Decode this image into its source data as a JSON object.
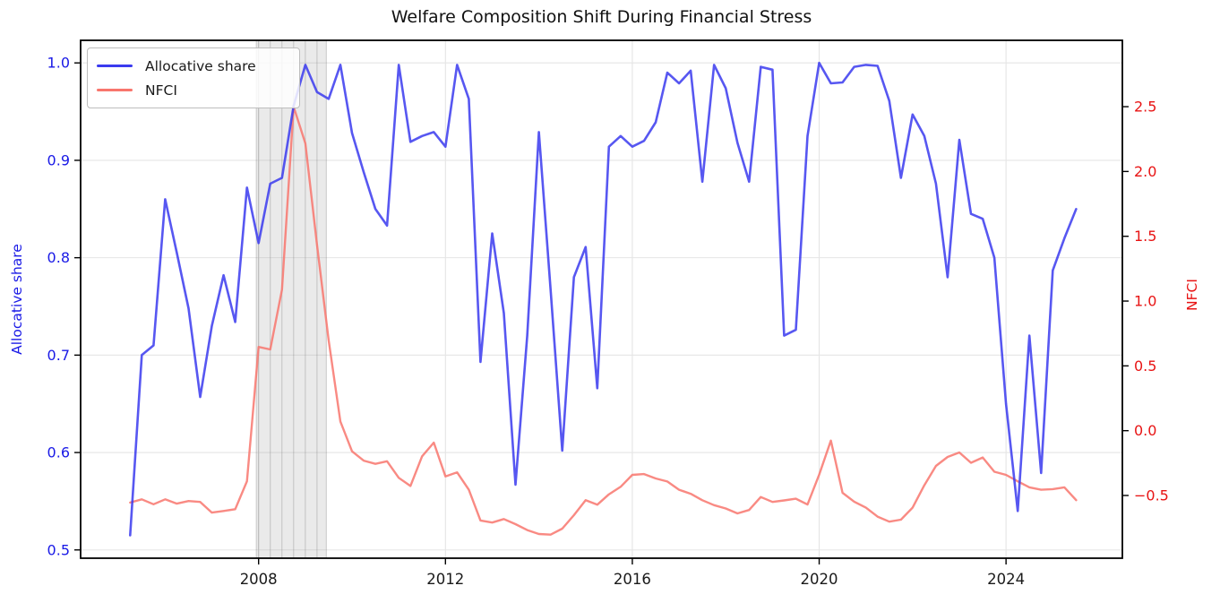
{
  "title": "Welfare Composition Shift During Financial Stress",
  "legend": [
    {
      "label": "Allocative share",
      "color": "#3a3aef"
    },
    {
      "label": "NFCI",
      "color": "#f8766d"
    }
  ],
  "axes": {
    "left": {
      "label": "Allocative share",
      "color": "#1a1ae6",
      "tick_values": [
        0.5,
        0.6,
        0.7,
        0.8,
        0.9,
        1.0
      ],
      "tick_labels": [
        "0.5",
        "0.6",
        "0.7",
        "0.8",
        "0.9",
        "1.0"
      ]
    },
    "right": {
      "label": "NFCI",
      "color": "#e81414",
      "tick_values": [
        -0.5,
        0.0,
        0.5,
        1.0,
        1.5,
        2.0,
        2.5
      ],
      "tick_labels": [
        "−0.5",
        "0.0",
        "0.5",
        "1.0",
        "1.5",
        "2.0",
        "2.5"
      ]
    },
    "x": {
      "tick_values": [
        2008,
        2012,
        2016,
        2020,
        2024
      ],
      "tick_labels": [
        "2008",
        "2012",
        "2016",
        "2020",
        "2024"
      ]
    }
  },
  "chart_data": {
    "type": "line",
    "title": "Welfare Composition Shift During Financial Stress",
    "x_start": 2005.25,
    "x_step": 0.25,
    "x_range": [
      2004.19,
      2026.49
    ],
    "left_range": [
      0.4915,
      1.0232
    ],
    "right_range": [
      -0.984,
      3.012
    ],
    "grid": true,
    "legend_position": "upper left",
    "shaded_region": {
      "from": 2007.95,
      "to": 2009.45,
      "fill": "rgba(160,160,160,0.22)",
      "edge": "rgba(120,120,120,0.35)",
      "quarterly_edges": true
    },
    "series": [
      {
        "name": "NFCI",
        "axis": "right",
        "color": "#f8766d",
        "width": 2.4,
        "opacity": 0.85,
        "values": [
          -0.555,
          -0.53,
          -0.568,
          -0.53,
          -0.563,
          -0.543,
          -0.55,
          -0.632,
          -0.62,
          -0.606,
          -0.39,
          0.646,
          0.627,
          1.088,
          2.5,
          2.217,
          1.434,
          0.698,
          0.071,
          -0.159,
          -0.231,
          -0.256,
          -0.236,
          -0.364,
          -0.427,
          -0.198,
          -0.092,
          -0.353,
          -0.322,
          -0.456,
          -0.693,
          -0.709,
          -0.682,
          -0.721,
          -0.767,
          -0.797,
          -0.802,
          -0.756,
          -0.652,
          -0.536,
          -0.571,
          -0.491,
          -0.433,
          -0.341,
          -0.335,
          -0.369,
          -0.392,
          -0.456,
          -0.487,
          -0.537,
          -0.575,
          -0.6,
          -0.638,
          -0.612,
          -0.512,
          -0.55,
          -0.538,
          -0.525,
          -0.57,
          -0.34,
          -0.076,
          -0.479,
          -0.548,
          -0.594,
          -0.663,
          -0.702,
          -0.687,
          -0.594,
          -0.421,
          -0.272,
          -0.203,
          -0.168,
          -0.248,
          -0.207,
          -0.317,
          -0.341,
          -0.391,
          -0.437,
          -0.456,
          -0.451,
          -0.437,
          -0.536
        ]
      },
      {
        "name": "Allocative share",
        "axis": "left",
        "color": "#3a3aef",
        "width": 2.6,
        "opacity": 0.85,
        "values": [
          0.515,
          0.7,
          0.71,
          0.86,
          0.805,
          0.748,
          0.657,
          0.73,
          0.782,
          0.734,
          0.872,
          0.815,
          0.876,
          0.882,
          0.956,
          0.998,
          0.97,
          0.963,
          0.998,
          0.928,
          0.888,
          0.85,
          0.833,
          0.998,
          0.919,
          0.925,
          0.929,
          0.914,
          0.998,
          0.963,
          0.693,
          0.825,
          0.743,
          0.567,
          0.72,
          0.929,
          0.767,
          0.602,
          0.78,
          0.811,
          0.666,
          0.914,
          0.925,
          0.914,
          0.92,
          0.939,
          0.99,
          0.979,
          0.992,
          0.878,
          0.998,
          0.974,
          0.918,
          0.878,
          0.996,
          0.993,
          0.72,
          0.726,
          0.925,
          1.0,
          0.979,
          0.98,
          0.996,
          0.998,
          0.997,
          0.961,
          0.882,
          0.947,
          0.925,
          0.876,
          0.78,
          0.921,
          0.845,
          0.84,
          0.8,
          0.65,
          0.54,
          0.72,
          0.579,
          0.787,
          0.82,
          0.85
        ]
      }
    ]
  },
  "style": {
    "grid_color": "#e5e5e5",
    "spine_color": "#000000",
    "tick_color": "#000000",
    "x_tick_color": "#1a1a1a",
    "background": "#ffffff"
  }
}
